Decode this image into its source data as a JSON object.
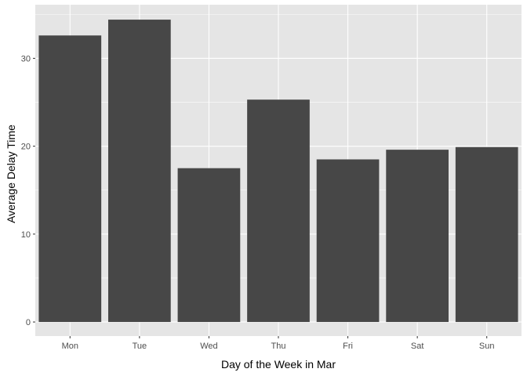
{
  "chart_data": {
    "type": "bar",
    "title": "",
    "xlabel": "Day of the Week in Mar",
    "ylabel": "Average Delay Time",
    "categories": [
      "Mon",
      "Tue",
      "Wed",
      "Thu",
      "Fri",
      "Sat",
      "Sun"
    ],
    "values": [
      32.6,
      34.4,
      17.5,
      25.3,
      18.5,
      19.6,
      19.9
    ],
    "ylim": [
      -1.6,
      36.1
    ],
    "yticks": [
      0,
      10,
      20,
      30
    ],
    "ytick_labels": [
      "0",
      "10",
      "20",
      "30"
    ],
    "grid": true,
    "legend": "none",
    "colors": {
      "bar": "#474747",
      "panel": "#e5e5e5",
      "grid_major": "#ffffff",
      "tick_text": "#4d4d4d",
      "tick_mark": "#333333"
    }
  }
}
